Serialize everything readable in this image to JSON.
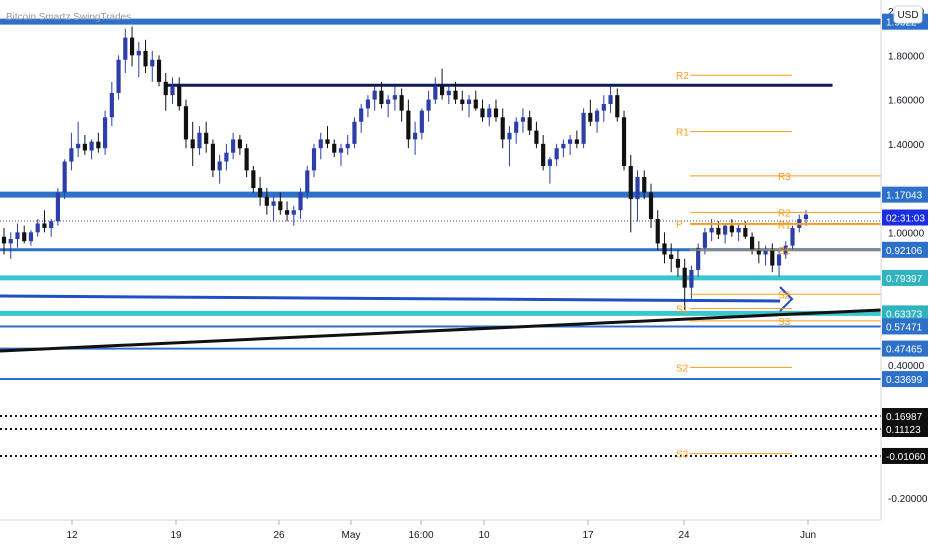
{
  "chart_data": {
    "type": "candlestick",
    "title": "Bitcoin Smartz SwingTrades",
    "currency": "USD",
    "colors": {
      "up_candle": "#2c3ea8",
      "down_candle": "#111111",
      "support_band": "#2c70c9",
      "teal_band": "#3ac6d0",
      "pivot": "#f59d1b",
      "trendline": "#111111",
      "dotted": "#111111",
      "current_price_tag": "#1b2de0"
    },
    "y_axis": {
      "ticks": [
        "2.00000",
        "1.80000",
        "1.60000",
        "1.40000",
        "1.00000",
        "0.40000",
        "-0.20000"
      ],
      "range": [
        -0.3,
        2.05
      ]
    },
    "x_axis": {
      "ticks": [
        "12",
        "19",
        "26",
        "May",
        "16:00",
        "10",
        "17",
        "24",
        "Jun"
      ]
    },
    "price_tags": [
      {
        "label": "1.9522",
        "value": 1.952,
        "style": "blue"
      },
      {
        "label": "1.17043",
        "value": 1.17043,
        "style": "blue"
      },
      {
        "label": "02:31:03",
        "value": 1.067,
        "style": "current"
      },
      {
        "label": "0.92106",
        "value": 0.92106,
        "style": "blue"
      },
      {
        "label": "0.79397",
        "value": 0.79397,
        "style": "teal"
      },
      {
        "label": "0.63373",
        "value": 0.63373,
        "style": "teal"
      },
      {
        "label": "0.57471",
        "value": 0.57471,
        "style": "blue"
      },
      {
        "label": "0.47465",
        "value": 0.47465,
        "style": "blue"
      },
      {
        "label": "0.33699",
        "value": 0.33699,
        "style": "blue"
      },
      {
        "label": "0.16987",
        "value": 0.16987,
        "style": "dark"
      },
      {
        "label": "0.11123",
        "value": 0.11123,
        "style": "dark"
      },
      {
        "label": "-0.01060",
        "value": -0.0106,
        "style": "dark"
      }
    ],
    "horizontal_levels": [
      {
        "value": 1.952,
        "kind": "blue-thick"
      },
      {
        "value": 1.17043,
        "kind": "blue-thick"
      },
      {
        "value": 0.92106,
        "kind": "blue"
      },
      {
        "value": 0.79397,
        "kind": "teal"
      },
      {
        "value": 0.63373,
        "kind": "teal"
      },
      {
        "value": 0.57471,
        "kind": "blue-thin"
      },
      {
        "value": 0.47465,
        "kind": "blue-thin"
      },
      {
        "value": 0.33699,
        "kind": "blue-thin"
      },
      {
        "value": 0.16987,
        "kind": "dotted"
      },
      {
        "value": 0.11123,
        "kind": "dotted"
      },
      {
        "value": -0.0106,
        "kind": "dotted"
      }
    ],
    "resistance_line": {
      "value": 1.665,
      "x_from": 0.19,
      "x_to": 0.945
    },
    "pivots_monthly": [
      {
        "label": "R2",
        "value": 1.71
      },
      {
        "label": "R1",
        "value": 1.455
      },
      {
        "label": "S1",
        "value": 0.655
      },
      {
        "label": "S2",
        "value": 0.39
      },
      {
        "label": "S3",
        "value": 0.0
      }
    ],
    "pivots_weekly": [
      {
        "label": "R3",
        "value": 1.255
      },
      {
        "label": "R2",
        "value": 1.09
      },
      {
        "label": "R1",
        "value": 1.035
      },
      {
        "label": "P",
        "value": 1.04
      },
      {
        "label": "S1",
        "value": 0.92
      },
      {
        "label": "S2",
        "value": 0.72
      },
      {
        "label": "S3",
        "value": 0.6
      }
    ],
    "candles": [
      [
        0.98,
        1.02,
        0.9,
        0.95
      ],
      [
        0.95,
        1.0,
        0.88,
        0.97
      ],
      [
        0.97,
        1.04,
        0.93,
        1.0
      ],
      [
        1.0,
        1.03,
        0.95,
        0.96
      ],
      [
        0.96,
        1.01,
        0.94,
        1.0
      ],
      [
        1.0,
        1.06,
        0.98,
        1.04
      ],
      [
        1.04,
        1.1,
        1.0,
        1.02
      ],
      [
        1.02,
        1.06,
        0.98,
        1.05
      ],
      [
        1.05,
        1.2,
        1.03,
        1.18
      ],
      [
        1.18,
        1.33,
        1.15,
        1.32
      ],
      [
        1.32,
        1.45,
        1.28,
        1.38
      ],
      [
        1.38,
        1.5,
        1.34,
        1.4
      ],
      [
        1.4,
        1.44,
        1.35,
        1.37
      ],
      [
        1.37,
        1.42,
        1.33,
        1.41
      ],
      [
        1.41,
        1.45,
        1.36,
        1.38
      ],
      [
        1.38,
        1.55,
        1.35,
        1.52
      ],
      [
        1.52,
        1.68,
        1.48,
        1.63
      ],
      [
        1.63,
        1.8,
        1.6,
        1.78
      ],
      [
        1.78,
        1.92,
        1.72,
        1.88
      ],
      [
        1.88,
        1.93,
        1.75,
        1.8
      ],
      [
        1.8,
        1.86,
        1.7,
        1.82
      ],
      [
        1.82,
        1.87,
        1.72,
        1.75
      ],
      [
        1.75,
        1.82,
        1.68,
        1.78
      ],
      [
        1.78,
        1.8,
        1.66,
        1.68
      ],
      [
        1.68,
        1.72,
        1.55,
        1.62
      ],
      [
        1.62,
        1.7,
        1.58,
        1.66
      ],
      [
        1.66,
        1.7,
        1.55,
        1.57
      ],
      [
        1.57,
        1.6,
        1.38,
        1.42
      ],
      [
        1.42,
        1.5,
        1.3,
        1.38
      ],
      [
        1.38,
        1.48,
        1.35,
        1.45
      ],
      [
        1.45,
        1.5,
        1.36,
        1.4
      ],
      [
        1.4,
        1.42,
        1.25,
        1.28
      ],
      [
        1.28,
        1.35,
        1.22,
        1.32
      ],
      [
        1.32,
        1.4,
        1.28,
        1.36
      ],
      [
        1.36,
        1.45,
        1.33,
        1.42
      ],
      [
        1.42,
        1.44,
        1.35,
        1.38
      ],
      [
        1.38,
        1.4,
        1.25,
        1.28
      ],
      [
        1.28,
        1.3,
        1.18,
        1.2
      ],
      [
        1.2,
        1.25,
        1.12,
        1.16
      ],
      [
        1.16,
        1.2,
        1.08,
        1.12
      ],
      [
        1.12,
        1.16,
        1.05,
        1.14
      ],
      [
        1.14,
        1.18,
        1.08,
        1.1
      ],
      [
        1.1,
        1.14,
        1.05,
        1.08
      ],
      [
        1.08,
        1.12,
        1.03,
        1.1
      ],
      [
        1.1,
        1.2,
        1.06,
        1.18
      ],
      [
        1.18,
        1.3,
        1.15,
        1.28
      ],
      [
        1.28,
        1.4,
        1.25,
        1.38
      ],
      [
        1.38,
        1.45,
        1.33,
        1.42
      ],
      [
        1.42,
        1.48,
        1.38,
        1.4
      ],
      [
        1.4,
        1.42,
        1.34,
        1.36
      ],
      [
        1.36,
        1.4,
        1.3,
        1.38
      ],
      [
        1.38,
        1.44,
        1.35,
        1.4
      ],
      [
        1.4,
        1.52,
        1.38,
        1.5
      ],
      [
        1.5,
        1.58,
        1.45,
        1.56
      ],
      [
        1.56,
        1.62,
        1.52,
        1.6
      ],
      [
        1.6,
        1.66,
        1.55,
        1.64
      ],
      [
        1.64,
        1.68,
        1.56,
        1.58
      ],
      [
        1.58,
        1.62,
        1.52,
        1.6
      ],
      [
        1.6,
        1.66,
        1.55,
        1.62
      ],
      [
        1.62,
        1.65,
        1.5,
        1.55
      ],
      [
        1.55,
        1.6,
        1.38,
        1.42
      ],
      [
        1.42,
        1.5,
        1.35,
        1.45
      ],
      [
        1.45,
        1.56,
        1.42,
        1.55
      ],
      [
        1.55,
        1.64,
        1.5,
        1.6
      ],
      [
        1.6,
        1.7,
        1.58,
        1.66
      ],
      [
        1.66,
        1.74,
        1.6,
        1.62
      ],
      [
        1.62,
        1.66,
        1.58,
        1.64
      ],
      [
        1.64,
        1.68,
        1.58,
        1.6
      ],
      [
        1.6,
        1.64,
        1.55,
        1.58
      ],
      [
        1.58,
        1.62,
        1.52,
        1.6
      ],
      [
        1.6,
        1.64,
        1.55,
        1.56
      ],
      [
        1.56,
        1.6,
        1.5,
        1.52
      ],
      [
        1.52,
        1.58,
        1.48,
        1.56
      ],
      [
        1.56,
        1.6,
        1.5,
        1.52
      ],
      [
        1.52,
        1.56,
        1.38,
        1.42
      ],
      [
        1.42,
        1.48,
        1.3,
        1.45
      ],
      [
        1.45,
        1.52,
        1.4,
        1.5
      ],
      [
        1.5,
        1.56,
        1.45,
        1.52
      ],
      [
        1.52,
        1.55,
        1.44,
        1.46
      ],
      [
        1.46,
        1.5,
        1.38,
        1.4
      ],
      [
        1.4,
        1.44,
        1.28,
        1.3
      ],
      [
        1.3,
        1.34,
        1.22,
        1.33
      ],
      [
        1.33,
        1.4,
        1.3,
        1.38
      ],
      [
        1.38,
        1.42,
        1.34,
        1.4
      ],
      [
        1.4,
        1.44,
        1.35,
        1.42
      ],
      [
        1.42,
        1.46,
        1.38,
        1.4
      ],
      [
        1.4,
        1.56,
        1.38,
        1.54
      ],
      [
        1.54,
        1.6,
        1.48,
        1.5
      ],
      [
        1.5,
        1.56,
        1.45,
        1.55
      ],
      [
        1.55,
        1.62,
        1.5,
        1.58
      ],
      [
        1.58,
        1.66,
        1.54,
        1.62
      ],
      [
        1.62,
        1.65,
        1.5,
        1.52
      ],
      [
        1.52,
        1.55,
        1.28,
        1.3
      ],
      [
        1.3,
        1.35,
        1.0,
        1.15
      ],
      [
        1.15,
        1.28,
        1.05,
        1.25
      ],
      [
        1.25,
        1.28,
        1.15,
        1.18
      ],
      [
        1.18,
        1.22,
        1.02,
        1.06
      ],
      [
        1.06,
        1.1,
        0.92,
        0.95
      ],
      [
        0.95,
        1.0,
        0.86,
        0.9
      ],
      [
        0.9,
        0.95,
        0.82,
        0.88
      ],
      [
        0.88,
        0.92,
        0.8,
        0.84
      ],
      [
        0.84,
        0.88,
        0.65,
        0.75
      ],
      [
        0.75,
        0.85,
        0.7,
        0.83
      ],
      [
        0.83,
        0.95,
        0.8,
        0.93
      ],
      [
        0.93,
        1.02,
        0.9,
        1.0
      ],
      [
        1.0,
        1.06,
        0.96,
        1.02
      ],
      [
        1.02,
        1.05,
        0.97,
        0.99
      ],
      [
        0.99,
        1.04,
        0.95,
        1.03
      ],
      [
        1.03,
        1.06,
        0.98,
        1.0
      ],
      [
        1.0,
        1.04,
        0.96,
        1.02
      ],
      [
        1.02,
        1.05,
        0.97,
        0.98
      ],
      [
        0.98,
        1.0,
        0.9,
        0.92
      ],
      [
        0.92,
        0.96,
        0.86,
        0.9
      ],
      [
        0.9,
        0.94,
        0.85,
        0.92
      ],
      [
        0.92,
        0.95,
        0.82,
        0.85
      ],
      [
        0.85,
        0.92,
        0.8,
        0.9
      ],
      [
        0.9,
        0.96,
        0.88,
        0.94
      ],
      [
        0.94,
        1.03,
        0.92,
        1.02
      ],
      [
        1.02,
        1.08,
        1.0,
        1.06
      ],
      [
        1.06,
        1.1,
        1.03,
        1.08
      ]
    ]
  }
}
